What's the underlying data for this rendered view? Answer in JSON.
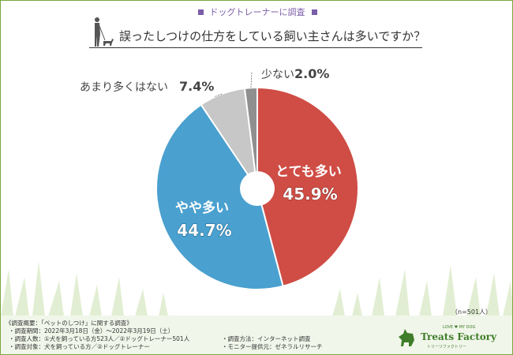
{
  "header": {
    "subtitle": "ドッグトレーナーに調査",
    "title": "誤ったしつけの仕方をしている飼い主さんは多いですか？"
  },
  "chart_data": {
    "type": "pie",
    "labels": [
      "とても多い",
      "やや多い",
      "あまり多くはない",
      "少ない"
    ],
    "values": [
      45.9,
      44.7,
      7.4,
      2.0
    ],
    "value_labels": [
      "45.9%",
      "44.7%",
      "7.4%",
      "2.0%"
    ],
    "colors": [
      "#cf4d45",
      "#4aa0cf",
      "#c7c7c7",
      "#8f8f8f"
    ],
    "donut_hole": true,
    "start": "top, clockwise"
  },
  "sample_note": "（n=501人）",
  "footer": {
    "heading": "《調査概要：「ペットのしつけ」に関する調査》",
    "period": "・調査期間：2022年3月18日（金）～2022年3月19日（土）",
    "count": "・調査人数：①犬を飼っている方523人／②ドッグトレーナー501人",
    "target": "・調査対象：犬を飼っている方／②ドッグトレーナー",
    "method": "・調査方法：インターネット調査",
    "monitor": "・モニター提供元：ゼネラルリサーチ"
  },
  "brand": {
    "tagline": "LOVE ♥ MY DOG",
    "name": "Treats Factory",
    "kana": "トリーツファクトリー"
  }
}
